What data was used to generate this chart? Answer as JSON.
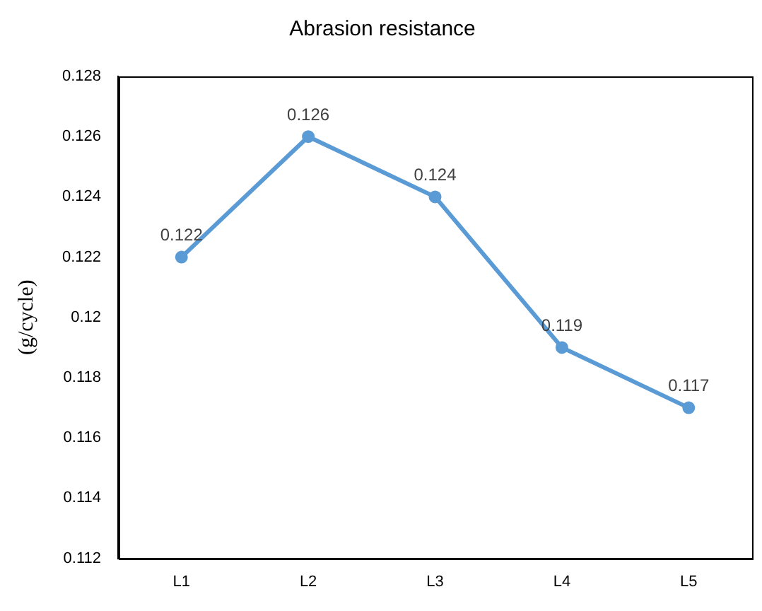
{
  "chart_data": {
    "type": "line",
    "title": "Abrasion resistance",
    "ylabel": "(g/cycle)",
    "categories": [
      "L1",
      "L2",
      "L3",
      "L4",
      "L5"
    ],
    "series": [
      {
        "color": "#5b9bd5",
        "values": [
          0.122,
          0.126,
          0.124,
          0.119,
          0.117
        ]
      }
    ],
    "ylim": [
      0.112,
      0.128
    ],
    "yticks": [
      0.112,
      0.114,
      0.116,
      0.118,
      0.12,
      0.122,
      0.124,
      0.126,
      0.128
    ],
    "grid": false,
    "legend": false,
    "marker": "circle",
    "line_style": "solid",
    "data_labels": true
  }
}
